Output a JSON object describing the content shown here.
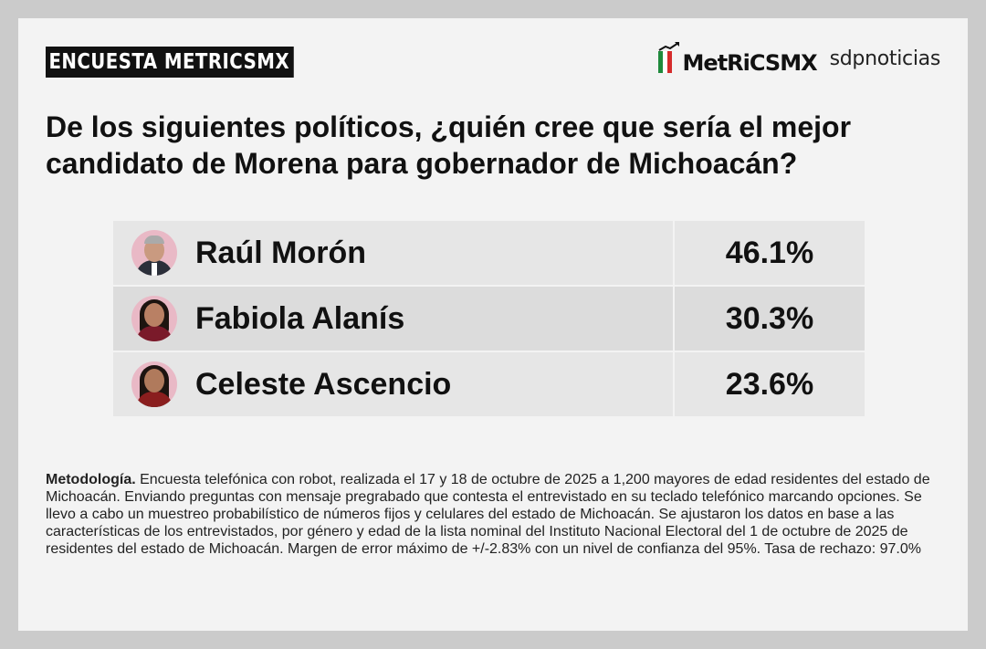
{
  "header": {
    "tag": "ENCUESTA METRICSMX",
    "brand_metrics": "MetRiCSMX",
    "brand_sdp": "sdpnoticias"
  },
  "question": "De los siguientes políticos, ¿quién cree que sería el mejor candidato de Morena para gobernador de Michoacán?",
  "chart_data": {
    "type": "table",
    "title": "De los siguientes políticos, ¿quién cree que sería el mejor candidato de Morena para gobernador de Michoacán?",
    "columns": [
      "",
      ""
    ],
    "rows": [
      {
        "name": "Raúl Morón",
        "value": 46.1,
        "label": "46.1%"
      },
      {
        "name": "Fabiola Alanís",
        "value": 30.3,
        "label": "30.3%"
      },
      {
        "name": "Celeste Ascencio",
        "value": 23.6,
        "label": "23.6%"
      }
    ]
  },
  "methodology": {
    "label": "Metodología.",
    "text": " Encuesta telefónica con robot, realizada el 17 y 18 de octubre de 2025 a 1,200 mayores de edad residentes del estado de Michoacán. Enviando preguntas con mensaje pregrabado que contesta el entrevistado en su teclado telefónico marcando opciones. Se llevo a cabo un muestreo probabilístico de números fijos y celulares del estado de Michoacán. Se ajustaron los datos en base a las características de los entrevistados, por género y edad de la lista nominal del Instituto Nacional Electoral del 1 de octubre de 2025 de residentes del estado de Michoacán. Margen de error máximo de +/-2.83% con un nivel de confianza del 95%. Tasa de rechazo: 97.0%"
  },
  "colors": {
    "flag_green": "#1f8a3c",
    "flag_white": "#ffffff",
    "flag_red": "#d52b2b",
    "avatar_bg": "#e9b9c6"
  }
}
